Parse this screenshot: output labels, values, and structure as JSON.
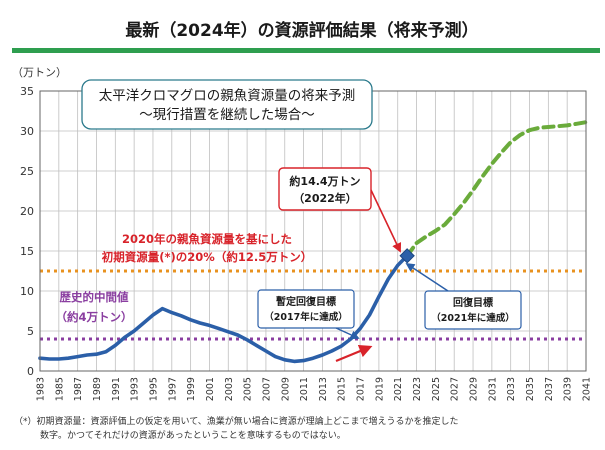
{
  "header": {
    "title": "最新（2024年）の資源評価結果（将来予測）",
    "accent_color": "#2e9e4f"
  },
  "callout": {
    "line1": "太平洋クロマグロの親魚資源量の将来予測",
    "line2": "～現行措置を継続した場合～"
  },
  "annotations": {
    "peak_label_1": "約14.4万トン",
    "peak_label_2": "（2022年）",
    "initial_label_1": "2020年の親魚資源量を基にした",
    "initial_label_2": "初期資源量(*)の20%（約12.5万トン）",
    "hist_label_1": "歴史的中間値",
    "hist_label_2": "（約4万トン）",
    "interim_label_1": "暫定回復目標",
    "interim_label_2": "（2017年に達成）",
    "recovery_label_1": "回復目標",
    "recovery_label_2": "（2021年に達成）"
  },
  "footnote": {
    "line1": "（*）初期資源量：資源評価上の仮定を用いて、漁業が無い場合に資源が理論上どこまで増えうるかを推定した",
    "line2": "数字。かつてそれだけの資源があったということを意味するものではない。"
  },
  "chart_data": {
    "type": "line",
    "title": "",
    "ylabel": "（万トン）",
    "xlim": [
      1983,
      2041
    ],
    "ylim": [
      0,
      35
    ],
    "yticks": [
      0,
      5,
      10,
      15,
      20,
      25,
      30,
      35
    ],
    "xticks": [
      1983,
      1985,
      1987,
      1989,
      1991,
      1993,
      1995,
      1997,
      1999,
      2001,
      2003,
      2005,
      2007,
      2009,
      2011,
      2013,
      2015,
      2017,
      2019,
      2021,
      2023,
      2025,
      2027,
      2029,
      2031,
      2033,
      2035,
      2037,
      2039,
      2041
    ],
    "grid": true,
    "series": [
      {
        "color": "#2b5fa8",
        "style": "solid",
        "x": [
          1983,
          1984,
          1985,
          1986,
          1987,
          1988,
          1989,
          1990,
          1991,
          1992,
          1993,
          1994,
          1995,
          1996,
          1997,
          1998,
          1999,
          2000,
          2001,
          2002,
          2003,
          2004,
          2005,
          2006,
          2007,
          2008,
          2009,
          2010,
          2011,
          2012,
          2013,
          2014,
          2015,
          2016,
          2017,
          2018,
          2019,
          2020,
          2021,
          2022
        ],
        "values": [
          1.6,
          1.5,
          1.5,
          1.6,
          1.8,
          2.0,
          2.1,
          2.4,
          3.2,
          4.2,
          5.0,
          6.0,
          7.0,
          7.8,
          7.3,
          6.9,
          6.4,
          6.0,
          5.7,
          5.3,
          4.9,
          4.5,
          3.9,
          3.2,
          2.5,
          1.8,
          1.4,
          1.2,
          1.3,
          1.6,
          2.0,
          2.5,
          3.1,
          4.0,
          5.3,
          7.0,
          9.3,
          11.5,
          13.2,
          14.4
        ]
      },
      {
        "color": "#6aab3b",
        "style": "dashed",
        "x": [
          2022,
          2023,
          2024,
          2025,
          2026,
          2027,
          2028,
          2029,
          2030,
          2031,
          2032,
          2033,
          2034,
          2035,
          2036,
          2037,
          2038,
          2039,
          2040,
          2041
        ],
        "values": [
          14.4,
          16.0,
          16.8,
          17.5,
          18.3,
          19.6,
          21.0,
          22.6,
          24.3,
          25.9,
          27.3,
          28.6,
          29.5,
          30.1,
          30.4,
          30.5,
          30.6,
          30.7,
          30.9,
          31.1
        ]
      }
    ],
    "reference_lines": [
      {
        "name": "初期資源量の20%",
        "value": 12.5,
        "color": "#e8921f",
        "style": "dotted"
      },
      {
        "name": "歴史的中間値",
        "value": 4.0,
        "color": "#8a3ea0",
        "style": "dotted"
      }
    ],
    "marker": {
      "x": 2022,
      "y": 14.4,
      "color": "#2b5fa8",
      "shape": "diamond"
    }
  }
}
